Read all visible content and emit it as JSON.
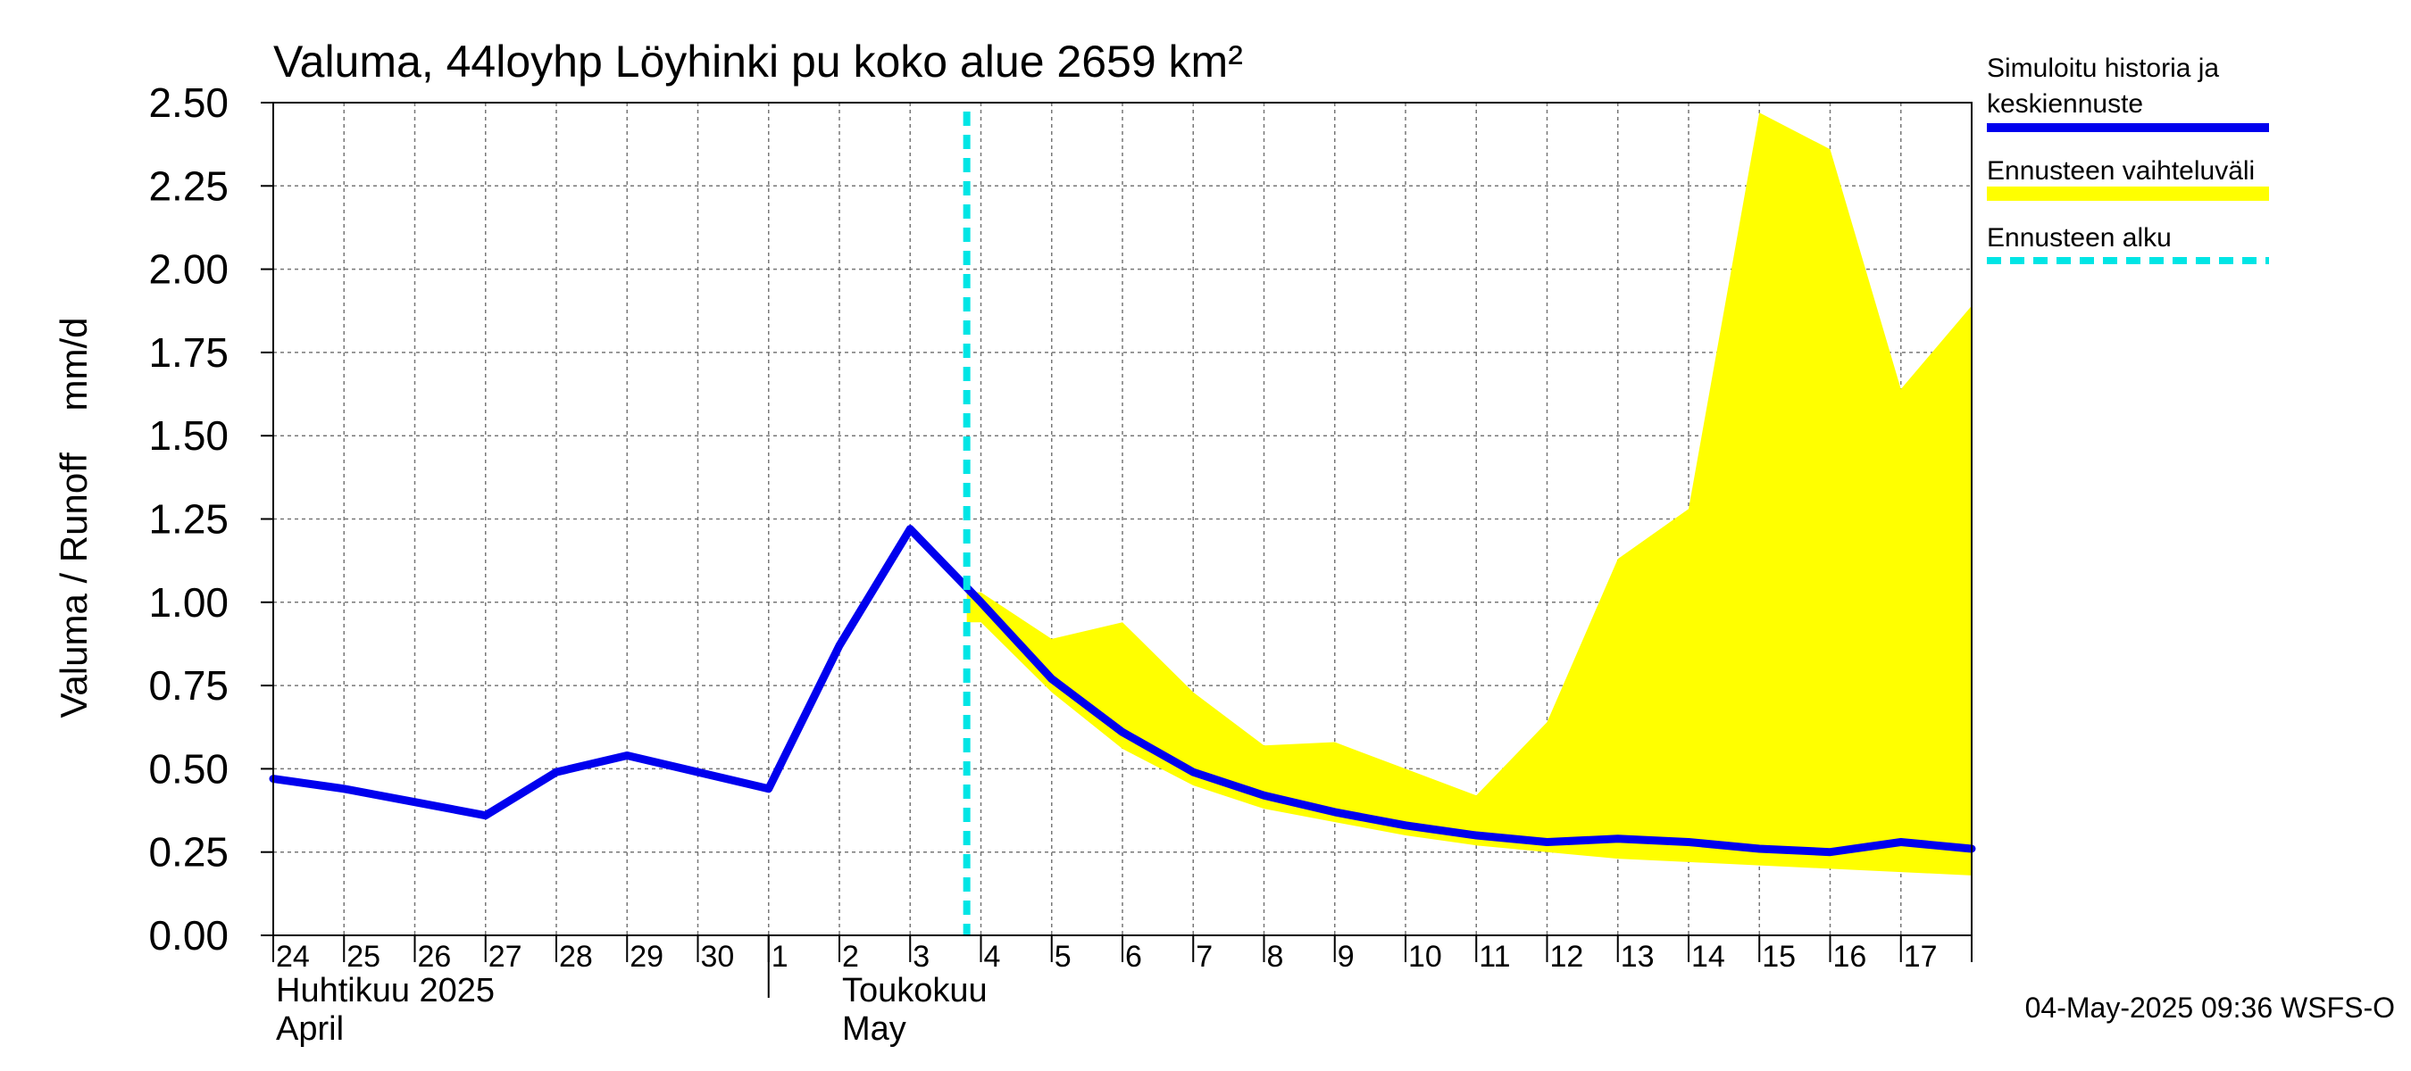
{
  "chart_data": {
    "type": "line",
    "title": "Valuma, 44loyhp Löyhinki pu koko alue 2659 km²",
    "ylabel": "Valuma / Runoff    mm/d",
    "ylim": [
      0,
      2.5
    ],
    "yticks": [
      "0.00",
      "0.25",
      "0.50",
      "0.75",
      "1.00",
      "1.25",
      "1.50",
      "1.75",
      "2.00",
      "2.25",
      "2.50"
    ],
    "x_labels": [
      "24",
      "25",
      "26",
      "27",
      "28",
      "29",
      "30",
      "1",
      "2",
      "3",
      "4",
      "5",
      "6",
      "7",
      "8",
      "9",
      "10",
      "11",
      "12",
      "13",
      "14",
      "15",
      "16",
      "17"
    ],
    "month_labels": [
      {
        "line1": "Huhtikuu  2025",
        "line2": "April",
        "day_index": 0
      },
      {
        "line1": "Toukokuu",
        "line2": "May",
        "day_index": 8
      }
    ],
    "month_boundary_day_index": 7,
    "forecast_start_day_index": 9.8,
    "series": [
      {
        "name": "Simuloitu historia ja keskiennuste",
        "color": "#0000ee",
        "x": [
          0,
          1,
          2,
          3,
          4,
          5,
          6,
          7,
          8,
          9,
          10,
          11,
          12,
          13,
          14,
          15,
          16,
          17,
          18,
          19,
          20,
          21,
          22,
          23,
          24
        ],
        "values": [
          0.47,
          0.44,
          0.4,
          0.36,
          0.49,
          0.54,
          0.49,
          0.44,
          0.87,
          1.22,
          1.0,
          0.77,
          0.61,
          0.49,
          0.42,
          0.37,
          0.33,
          0.3,
          0.28,
          0.29,
          0.28,
          0.26,
          0.25,
          0.28,
          0.26
        ]
      }
    ],
    "band": {
      "name": "Ennusteen vaihteluväli",
      "color": "#ffff00",
      "x": [
        9.8,
        10,
        11,
        12,
        13,
        14,
        15,
        16,
        17,
        18,
        19,
        20,
        21,
        22,
        23,
        24
      ],
      "upper": [
        1.03,
        1.03,
        0.89,
        0.94,
        0.73,
        0.57,
        0.58,
        0.5,
        0.42,
        0.64,
        1.13,
        1.28,
        2.47,
        2.36,
        1.64,
        1.89
      ],
      "lower": [
        0.94,
        0.94,
        0.73,
        0.56,
        0.45,
        0.38,
        0.34,
        0.3,
        0.27,
        0.25,
        0.23,
        0.22,
        0.21,
        0.2,
        0.19,
        0.18
      ]
    },
    "forecast_line": {
      "name": "Ennusteen alku",
      "color": "#00e5e5"
    },
    "grid": true,
    "legend_position": "right"
  },
  "legend": {
    "item1_line1": "Simuloitu historia ja",
    "item1_line2": "keskiennuste",
    "item2": "Ennusteen vaihteluväli",
    "item3": "Ennusteen alku"
  },
  "timestamp": "04-May-2025 09:36 WSFS-O"
}
